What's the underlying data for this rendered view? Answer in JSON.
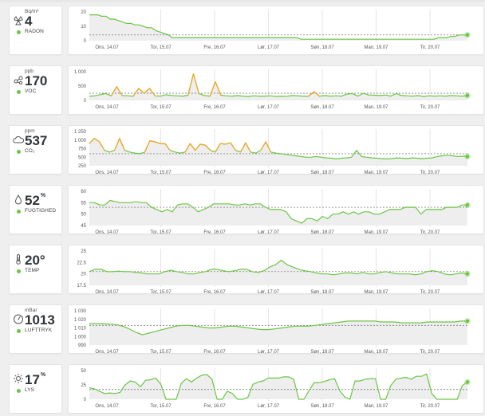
{
  "colors": {
    "green": "#6cc644",
    "orange": "#f5a623",
    "dot_green": "#6cc644",
    "grid": "#e4e4e4",
    "dashed": "#666666",
    "fill": "#eeeeee"
  },
  "days": [
    "Ons, 14.07",
    "Tor, 15.07",
    "Fre, 16.07",
    "Lør, 17.07",
    "Søn, 18.07",
    "Man, 19.07",
    "Tir, 20.07"
  ],
  "panels": [
    {
      "key": "radon",
      "icon": "radon-icon",
      "unit": "Bq/m³",
      "value": "4",
      "superscript": "",
      "label": "RADON",
      "yticks": [
        "20",
        "10",
        "0"
      ],
      "ylim": [
        0,
        20
      ],
      "threshold": 4,
      "values": [
        18,
        18,
        18,
        17,
        17,
        15,
        15,
        14,
        13,
        12,
        12,
        11,
        11,
        10,
        9,
        9,
        7,
        6,
        5,
        4,
        2,
        2,
        2,
        2,
        2,
        2,
        2,
        2,
        2,
        2,
        2,
        2,
        2,
        2,
        2,
        2,
        2,
        2,
        2,
        2,
        2,
        2,
        2,
        2,
        2,
        2,
        2,
        2,
        2,
        2,
        2,
        1,
        1,
        1,
        1,
        1,
        1,
        1,
        1,
        1,
        1,
        1,
        1,
        1,
        1,
        1,
        1,
        1,
        1,
        1,
        1,
        1,
        1,
        1,
        1,
        1,
        1,
        1,
        1,
        1,
        1,
        1,
        1,
        1,
        2,
        2,
        2,
        3,
        3,
        4,
        4,
        4
      ]
    },
    {
      "key": "voc",
      "icon": "voc-icon",
      "unit": "ppb",
      "value": "170",
      "superscript": "",
      "label": "VOC",
      "yticks": [
        "1 000",
        "500",
        "0"
      ],
      "ylim": [
        0,
        1000
      ],
      "threshold": 250,
      "orange_above": 250,
      "values": [
        150,
        160,
        200,
        240,
        160,
        480,
        170,
        160,
        150,
        420,
        250,
        420,
        160,
        150,
        200,
        170,
        160,
        150,
        180,
        930,
        240,
        170,
        150,
        650,
        180,
        160,
        150,
        170,
        150,
        140,
        160,
        150,
        150,
        160,
        140,
        150,
        145,
        170,
        160,
        150,
        150,
        300,
        150,
        170,
        150,
        160,
        150,
        220,
        240,
        150,
        250,
        190,
        180,
        170,
        190,
        150,
        240,
        170,
        160,
        150,
        170,
        140,
        160,
        150,
        160,
        150,
        170,
        160,
        150,
        170
      ]
    },
    {
      "key": "co2",
      "icon": "cloud-icon",
      "unit": "ppm",
      "value": "537",
      "superscript": "",
      "label": "CO₂",
      "yticks": [
        "1 250",
        "1 000",
        "750",
        "500",
        "250"
      ],
      "ylim": [
        250,
        1250
      ],
      "threshold": 600,
      "orange_above": 800,
      "values": [
        900,
        1050,
        950,
        700,
        650,
        700,
        1050,
        700,
        650,
        620,
        600,
        650,
        980,
        950,
        900,
        900,
        700,
        650,
        620,
        650,
        900,
        700,
        880,
        850,
        700,
        650,
        900,
        880,
        920,
        700,
        650,
        920,
        650,
        620,
        700,
        950,
        650,
        620,
        600,
        580,
        560,
        540,
        520,
        500,
        500,
        520,
        500,
        480,
        470,
        450,
        470,
        480,
        500,
        700,
        520,
        500,
        480,
        470,
        460,
        450,
        460,
        480,
        470,
        460,
        480,
        470,
        460,
        470,
        480,
        520,
        540,
        560,
        540,
        520,
        530,
        520
      ]
    },
    {
      "key": "humidity",
      "icon": "drop-icon",
      "unit": "",
      "value": "52",
      "superscript": "%",
      "label": "FUGTIGHED",
      "yticks": [
        "60",
        "55",
        "50",
        "45"
      ],
      "ylim": [
        45,
        60
      ],
      "threshold": 53,
      "values": [
        55,
        55,
        54,
        54,
        56,
        55.5,
        55,
        55,
        55,
        55.5,
        55,
        55,
        53,
        52,
        51,
        52,
        51,
        54,
        54.5,
        54.5,
        53,
        51,
        52,
        53,
        54.5,
        54.5,
        54.5,
        54.5,
        54,
        54,
        54.5,
        54,
        54.5,
        54.5,
        53,
        52,
        52,
        52,
        51,
        48,
        47,
        46,
        48,
        48,
        47,
        49,
        48,
        50,
        50,
        51,
        50,
        51,
        50,
        51,
        51,
        50,
        50,
        51,
        52,
        52,
        52,
        53,
        53,
        53,
        50,
        52,
        52,
        52,
        52,
        53,
        53,
        53,
        54,
        54
      ]
    },
    {
      "key": "temperature",
      "icon": "thermometer-icon",
      "unit": "",
      "value": "20°",
      "superscript": "",
      "label": "TEMP",
      "yticks": [
        "25",
        "22.5",
        "20",
        "17.5"
      ],
      "ylim": [
        17.5,
        25
      ],
      "threshold": 20.5,
      "values": [
        20.5,
        21,
        21,
        20.5,
        20.5,
        20.6,
        20.5,
        20.5,
        20.3,
        20.2,
        20,
        20,
        20,
        20.5,
        20.8,
        20.5,
        20.3,
        20,
        20,
        20.3,
        20.5,
        21,
        21,
        20.7,
        20.5,
        20.7,
        21,
        21,
        20.5,
        20.3,
        20.7,
        21.5,
        22,
        23,
        22,
        21.5,
        21,
        20.7,
        20.5,
        20.2,
        20,
        20,
        19.8,
        20,
        20.2,
        20.2,
        20,
        20.3,
        20,
        20,
        20.3,
        20.5,
        20.2,
        20,
        20,
        20,
        19.8,
        20,
        20.5,
        20.7,
        20.5,
        20,
        19.8,
        20,
        20.2,
        20
      ]
    },
    {
      "key": "pressure",
      "icon": "gauge-icon",
      "unit": "mBar",
      "value": "1013",
      "superscript": "",
      "label": "LUFTTRYK",
      "yticks": [
        "1 030",
        "1 020",
        "1 010",
        "1 000",
        "990"
      ],
      "ylim": [
        990,
        1030
      ],
      "threshold": 1013,
      "values": [
        1015,
        1015,
        1015,
        1014.5,
        1014,
        1012,
        1009,
        1005,
        1002,
        1004,
        1006,
        1008,
        1010,
        1012,
        1013,
        1013,
        1012,
        1011,
        1010,
        1010,
        1011,
        1012,
        1012,
        1011,
        1010,
        1009,
        1008,
        1008,
        1009,
        1010,
        1011,
        1012,
        1012,
        1012,
        1013,
        1014,
        1015,
        1016,
        1017,
        1018,
        1018,
        1018,
        1018,
        1018,
        1017,
        1017,
        1017,
        1016,
        1016,
        1016,
        1016,
        1017,
        1017,
        1017,
        1017,
        1017,
        1018,
        1018
      ]
    },
    {
      "key": "light",
      "icon": "sun-icon",
      "unit": "",
      "value": "17",
      "superscript": "%",
      "label": "LYS",
      "yticks": [
        "50",
        "25",
        "0"
      ],
      "ylim": [
        0,
        50
      ],
      "threshold": 17,
      "values": [
        20,
        18,
        14,
        10,
        11,
        10,
        12,
        25,
        32,
        30,
        22,
        33,
        34,
        37,
        26,
        0,
        0,
        0,
        28,
        36,
        30,
        37,
        42,
        43,
        35,
        0,
        0,
        14,
        10,
        0,
        0,
        3,
        26,
        30,
        32,
        37,
        37,
        37,
        39,
        39,
        35,
        0,
        0,
        15,
        29,
        29,
        31,
        34,
        36,
        15,
        4,
        0,
        32,
        32,
        35,
        36,
        36,
        0,
        0,
        24,
        35,
        37,
        38,
        35,
        40,
        40,
        44,
        10,
        0,
        0,
        0,
        0,
        0,
        24,
        30
      ]
    }
  ]
}
